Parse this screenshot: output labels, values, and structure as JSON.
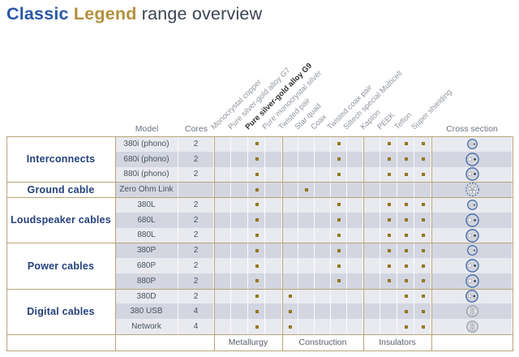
{
  "title": {
    "classic": "Classic",
    "legend": "Legend",
    "rest": " range overview"
  },
  "table": {
    "col_headers": {
      "model": "Model",
      "cores": "Cores",
      "cross_section": "Cross section"
    },
    "attribute_columns": [
      {
        "label": "Monocrystal copper",
        "group": "Metallurgy",
        "bold": false
      },
      {
        "label": "Pure silver-gold alloy G7",
        "group": "Metallurgy",
        "bold": false
      },
      {
        "label": "Pure silver-gold alloy G9",
        "group": "Metallurgy",
        "bold": true
      },
      {
        "label": "Pure monocrystal silver",
        "group": "Metallurgy",
        "bold": false
      },
      {
        "label": "Twisted pair",
        "group": "Construction",
        "bold": false
      },
      {
        "label": "Star quad",
        "group": "Construction",
        "bold": false
      },
      {
        "label": "Coax",
        "group": "Construction",
        "bold": false
      },
      {
        "label": "Twisted coax pair",
        "group": "Construction",
        "bold": false
      },
      {
        "label": "Siltech special Multicell",
        "group": "Construction",
        "bold": false
      },
      {
        "label": "Kapton",
        "group": "Insulators",
        "bold": false
      },
      {
        "label": "PEEK",
        "group": "Insulators",
        "bold": false
      },
      {
        "label": "Teflon",
        "group": "Insulators",
        "bold": false
      },
      {
        "label": "Super shielding",
        "group": "Insulators",
        "bold": false
      }
    ],
    "row_groups": [
      {
        "label": "Interconnects",
        "rows": [
          {
            "model": "380i (phono)",
            "cores": "2",
            "attrs": [
              "Pure silver-gold alloy G9",
              "Twisted coax pair",
              "PEEK",
              "Teflon",
              "Super shielding"
            ],
            "cross_section": "coax-small"
          },
          {
            "model": "680i (phono)",
            "cores": "2",
            "attrs": [
              "Pure silver-gold alloy G9",
              "Twisted coax pair",
              "PEEK",
              "Teflon",
              "Super shielding"
            ],
            "cross_section": "coax-medium"
          },
          {
            "model": "880i (phono)",
            "cores": "2",
            "attrs": [
              "Pure silver-gold alloy G9",
              "Twisted coax pair",
              "PEEK",
              "Teflon",
              "Super shielding"
            ],
            "cross_section": "coax-medium"
          }
        ]
      },
      {
        "label": "Ground cable",
        "rows": [
          {
            "model": "Zero Ohm Link",
            "cores": "",
            "attrs": [
              "Pure silver-gold alloy G9",
              "Star quad"
            ],
            "cross_section": "multicell"
          }
        ]
      },
      {
        "label": "Loudspeaker cables",
        "rows": [
          {
            "model": "380L",
            "cores": "2",
            "attrs": [
              "Pure silver-gold alloy G9",
              "Twisted coax pair",
              "PEEK",
              "Teflon",
              "Super shielding"
            ],
            "cross_section": "coax-small"
          },
          {
            "model": "680L",
            "cores": "2",
            "attrs": [
              "Pure silver-gold alloy G9",
              "Twisted coax pair",
              "PEEK",
              "Teflon",
              "Super shielding"
            ],
            "cross_section": "coax-medium"
          },
          {
            "model": "880L",
            "cores": "2",
            "attrs": [
              "Pure silver-gold alloy G9",
              "Twisted coax pair",
              "PEEK",
              "Teflon",
              "Super shielding"
            ],
            "cross_section": "coax-medium"
          }
        ]
      },
      {
        "label": "Power cables",
        "rows": [
          {
            "model": "380P",
            "cores": "2",
            "attrs": [
              "Pure silver-gold alloy G9",
              "Twisted coax pair",
              "PEEK",
              "Teflon",
              "Super shielding"
            ],
            "cross_section": "coax-small"
          },
          {
            "model": "680P",
            "cores": "2",
            "attrs": [
              "Pure silver-gold alloy G9",
              "Twisted coax pair",
              "PEEK",
              "Teflon",
              "Super shielding"
            ],
            "cross_section": "coax-medium"
          },
          {
            "model": "880P",
            "cores": "2",
            "attrs": [
              "Pure silver-gold alloy G9",
              "Twisted coax pair",
              "PEEK",
              "Teflon",
              "Super shielding"
            ],
            "cross_section": "coax-medium"
          }
        ]
      },
      {
        "label": "Digital cables",
        "rows": [
          {
            "model": "380D",
            "cores": "2",
            "attrs": [
              "Pure silver-gold alloy G9",
              "Twisted pair",
              "Teflon",
              "Super shielding"
            ],
            "cross_section": "coax-square"
          },
          {
            "model": "380 USB",
            "cores": "4",
            "attrs": [
              "Pure silver-gold alloy G9",
              "Twisted pair",
              "Teflon",
              "Super shielding"
            ],
            "cross_section": "duo"
          },
          {
            "model": "Network",
            "cores": "4",
            "attrs": [
              "Pure silver-gold alloy G9",
              "Twisted pair",
              "Teflon",
              "Super shielding"
            ],
            "cross_section": "duo"
          }
        ]
      }
    ],
    "footer_groups": [
      "Metallurgy",
      "Construction",
      "Insulators"
    ]
  },
  "colors": {
    "title_blue": "#2a57a5",
    "title_gold": "#b2913c",
    "title_dark": "#3a4450",
    "border_tan": "#b7a479",
    "row_light": "#e9eaef",
    "row_dark": "#d3d6e1",
    "dot_gold": "#a5841f",
    "group_label_blue": "#24407c",
    "icon_ring_blue": "#2d5aa7",
    "icon_ring_gray": "#8d96a6",
    "header_gray": "#6b7480",
    "rotated_gray": "#8f959d",
    "cell_text": "#46525f"
  }
}
